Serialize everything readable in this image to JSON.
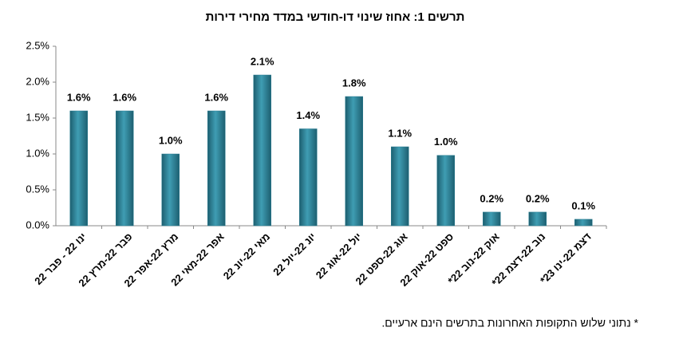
{
  "chart_data": {
    "type": "bar",
    "title": "תרשים 1: אחוז שינוי דו-חודשי במדד מחירי דירות",
    "note": "* נתוני שלוש התקופות האחרונות בתרשים הינם ארעיים.",
    "categories": [
      "ינו 22 - פבר 22",
      "פבר 22-מרץ 22",
      "מרץ 22-אפר 22",
      "אפר 22-מאי 22",
      "מאי 22-יונ 22",
      "יונ 22-יול 22",
      "יול 22-אוג 22",
      "אוג 22-ספט 22",
      "ספט 22-אוק 22",
      "אוק 22-נוב 22*",
      "נוב 22-דצמ 22*",
      "דצמ 22-ינו 23*"
    ],
    "values": [
      1.6,
      1.6,
      1.0,
      1.6,
      2.1,
      1.35,
      1.8,
      1.1,
      0.98,
      0.19,
      0.19,
      0.09
    ],
    "value_labels": [
      "1.6%",
      "1.6%",
      "1.0%",
      "1.6%",
      "2.1%",
      "1.4%",
      "1.8%",
      "1.1%",
      "1.0%",
      "0.2%",
      "0.2%",
      "0.1%"
    ],
    "color": "#2b7f93",
    "ylim": [
      0,
      2.5
    ],
    "yticks": [
      {
        "value": 0,
        "label": "0.0%"
      },
      {
        "value": 0.5,
        "label": "0.5%"
      },
      {
        "value": 1,
        "label": "1.0%"
      },
      {
        "value": 1.5,
        "label": "1.5%"
      },
      {
        "value": 2,
        "label": "2.0%"
      },
      {
        "value": 2.5,
        "label": "2.5%"
      }
    ],
    "grid": false
  }
}
